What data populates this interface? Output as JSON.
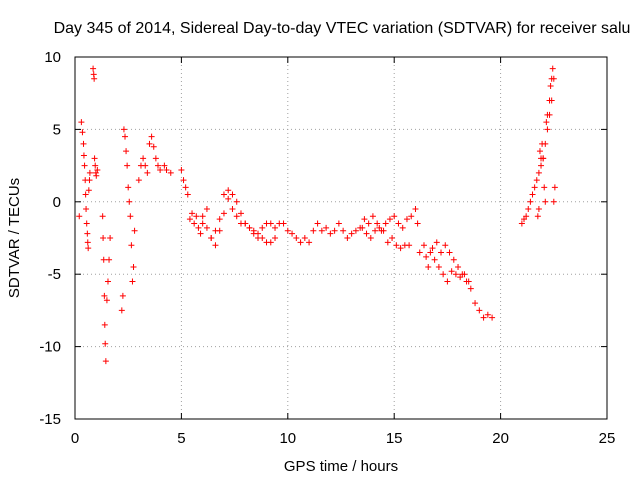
{
  "chart_data": {
    "type": "scatter",
    "title": "Day 345 of 2014, Sidereal Day-to-day VTEC variation (SDTVAR) for receiver salu",
    "xlabel": "GPS time / hours",
    "ylabel": "SDTVAR / TECUs",
    "xlim": [
      0,
      25
    ],
    "ylim": [
      -15,
      10
    ],
    "xticks": [
      0,
      5,
      10,
      15,
      20,
      25
    ],
    "yticks": [
      -15,
      -10,
      -5,
      0,
      5,
      10
    ],
    "xtick_labels": [
      "0",
      "5",
      "10",
      "15",
      "20",
      "25"
    ],
    "ytick_labels": [
      "-15",
      "-10",
      "-5",
      "0",
      "5",
      "10"
    ],
    "grid": true,
    "marker": "+",
    "color": "#ff0000",
    "series": [
      {
        "name": "SDTVAR",
        "x": [
          0.2,
          0.3,
          0.35,
          0.4,
          0.42,
          0.45,
          0.48,
          0.5,
          0.52,
          0.55,
          0.58,
          0.6,
          0.62,
          0.65,
          0.68,
          0.7,
          0.85,
          0.88,
          0.9,
          0.92,
          0.95,
          0.98,
          1.0,
          1.05,
          1.3,
          1.32,
          1.35,
          1.38,
          1.4,
          1.42,
          1.45,
          1.5,
          1.55,
          1.6,
          1.65,
          2.2,
          2.25,
          2.3,
          2.35,
          2.4,
          2.45,
          2.5,
          2.55,
          2.6,
          2.65,
          2.7,
          2.75,
          2.8,
          3.0,
          3.1,
          3.2,
          3.3,
          3.4,
          3.5,
          3.6,
          3.7,
          3.8,
          3.9,
          4.0,
          4.2,
          4.3,
          4.5,
          5.0,
          5.1,
          5.2,
          5.3,
          5.4,
          5.5,
          5.6,
          5.7,
          5.8,
          5.9,
          6.0,
          6.2,
          6.4,
          6.6,
          6.8,
          7.0,
          7.2,
          7.4,
          7.6,
          7.8,
          8.0,
          8.2,
          8.4,
          8.6,
          8.8,
          9.0,
          9.2,
          9.4,
          9.6,
          9.8,
          10.0,
          10.2,
          10.4,
          10.6,
          10.8,
          11.0,
          11.2,
          11.4,
          11.6,
          11.8,
          12.0,
          12.2,
          12.4,
          12.6,
          12.8,
          13.0,
          13.2,
          13.4,
          13.6,
          13.8,
          14.0,
          14.2,
          14.4,
          14.6,
          14.8,
          15.0,
          15.2,
          15.4,
          15.6,
          15.8,
          16.0,
          16.1,
          16.2,
          16.4,
          16.6,
          16.8,
          17.0,
          17.2,
          17.4,
          17.6,
          17.8,
          18.0,
          18.2,
          18.4,
          18.6,
          18.8,
          19.0,
          19.2,
          19.4,
          19.6,
          6.0,
          6.2,
          6.4,
          6.6,
          6.8,
          7.0,
          7.2,
          7.4,
          7.6,
          7.8,
          8.0,
          8.2,
          8.4,
          8.6,
          8.8,
          9.0,
          9.2,
          9.4,
          13.5,
          13.7,
          13.9,
          14.1,
          14.3,
          14.5,
          14.7,
          14.9,
          15.1,
          15.3,
          15.5,
          15.7,
          16.5,
          16.7,
          16.9,
          17.1,
          17.3,
          17.5,
          17.7,
          17.9,
          18.1,
          18.3,
          18.5,
          21.0,
          21.1,
          21.2,
          21.3,
          21.4,
          21.5,
          21.6,
          21.7,
          21.8,
          21.9,
          22.0,
          22.1,
          22.2,
          22.3,
          22.4,
          22.5,
          21.75,
          21.8,
          21.85,
          21.9,
          21.95,
          22.0,
          22.05,
          22.1,
          22.15,
          22.2,
          22.3,
          22.35,
          22.4,
          22.45,
          22.5,
          22.55
        ],
        "y": [
          -1.0,
          5.5,
          4.8,
          4.0,
          3.2,
          2.5,
          1.5,
          0.5,
          -0.5,
          -1.5,
          -2.2,
          -2.8,
          -3.2,
          0.8,
          1.5,
          2.0,
          9.2,
          8.8,
          8.5,
          3.0,
          2.5,
          2.0,
          1.8,
          2.2,
          -1.0,
          -2.5,
          -4.0,
          -6.5,
          -8.5,
          -9.8,
          -11.0,
          -6.8,
          -5.5,
          -4.0,
          -2.5,
          -7.5,
          -6.5,
          5.0,
          4.5,
          3.5,
          2.5,
          1.0,
          0.0,
          -1.0,
          -3.0,
          -5.5,
          -4.5,
          -2.0,
          1.5,
          2.5,
          3.0,
          2.5,
          2.0,
          4.0,
          4.5,
          3.8,
          3.0,
          2.5,
          2.2,
          2.5,
          2.2,
          2.0,
          2.2,
          1.5,
          1.0,
          0.5,
          -1.2,
          -0.8,
          -1.5,
          -1.0,
          -1.8,
          -2.2,
          -1.0,
          -0.5,
          -2.5,
          -3.0,
          -2.0,
          0.5,
          0.8,
          -0.5,
          -1.0,
          -1.5,
          -1.5,
          -1.8,
          -2.0,
          -2.2,
          -1.8,
          -1.5,
          -1.5,
          -1.8,
          -1.5,
          -1.5,
          -2.0,
          -2.2,
          -2.5,
          -2.8,
          -2.5,
          -2.8,
          -2.0,
          -1.5,
          -2.0,
          -1.8,
          -2.2,
          -2.0,
          -1.5,
          -2.0,
          -2.5,
          -2.2,
          -2.0,
          -1.8,
          -1.2,
          -1.5,
          -1.0,
          -1.5,
          -2.0,
          -1.5,
          -1.2,
          -1.0,
          -1.5,
          -1.8,
          -1.2,
          -1.0,
          -0.5,
          -1.5,
          -3.5,
          -3.0,
          -4.5,
          -3.2,
          -2.8,
          -3.5,
          -3.0,
          -3.5,
          -4.0,
          -4.5,
          -5.0,
          -5.5,
          -6.0,
          -7.0,
          -7.5,
          -8.0,
          -7.8,
          -8.0,
          -1.5,
          -1.8,
          -2.5,
          -2.0,
          -1.2,
          -0.8,
          0.2,
          0.5,
          0.0,
          -0.8,
          -1.5,
          -1.8,
          -2.2,
          -2.5,
          -2.5,
          -2.8,
          -2.8,
          -2.5,
          -1.8,
          -2.2,
          -2.5,
          -2.0,
          -1.8,
          -2.0,
          -2.8,
          -2.5,
          -3.0,
          -3.2,
          -3.0,
          -3.0,
          -3.8,
          -3.5,
          -4.0,
          -4.5,
          -5.0,
          -5.5,
          -4.8,
          -5.0,
          -5.2,
          -5.0,
          -5.5,
          -1.5,
          -1.2,
          -1.0,
          -0.5,
          0.0,
          0.5,
          1.0,
          1.5,
          2.0,
          2.5,
          3.0,
          4.0,
          5.0,
          6.0,
          7.0,
          8.5,
          -1.0,
          -0.5,
          3.5,
          3.0,
          4.0,
          3.0,
          1.0,
          0.0,
          5.5,
          6.0,
          7.0,
          8.0,
          8.5,
          9.2,
          0.0,
          1.0
        ]
      }
    ]
  }
}
